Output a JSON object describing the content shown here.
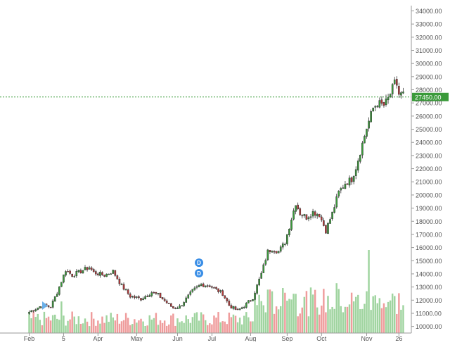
{
  "chart_data": {
    "type": "candlestick",
    "y_axis": {
      "position": "right",
      "min": 9500,
      "max": 34400,
      "ticks": [
        10000,
        11000,
        12000,
        13000,
        14000,
        15000,
        16000,
        17000,
        18000,
        19000,
        20000,
        21000,
        22000,
        23000,
        24000,
        25000,
        26000,
        27000,
        28000,
        29000,
        30000,
        31000,
        32000,
        33000,
        34000
      ],
      "tick_labels": [
        "10000.00",
        "11000.00",
        "12000.00",
        "13000.00",
        "14000.00",
        "15000.00",
        "16000.00",
        "17000.00",
        "18000.00",
        "19000.00",
        "20000.00",
        "21000.00",
        "22000.00",
        "23000.00",
        "24000.00",
        "25000.00",
        "26000.00",
        "27000.00",
        "28000.00",
        "29000.00",
        "30000.00",
        "31000.00",
        "32000.00",
        "33000.00",
        "34000.00"
      ]
    },
    "x_axis": {
      "bar_count": 175,
      "labels": [
        {
          "bar": 0,
          "text": "Feb"
        },
        {
          "bar": 16,
          "text": "5"
        },
        {
          "bar": 32,
          "text": "Apr"
        },
        {
          "bar": 50,
          "text": "May"
        },
        {
          "bar": 69,
          "text": "Jun"
        },
        {
          "bar": 85,
          "text": "Jul"
        },
        {
          "bar": 103,
          "text": "Aug"
        },
        {
          "bar": 120,
          "text": "Sep"
        },
        {
          "bar": 136,
          "text": "Oct"
        },
        {
          "bar": 157,
          "text": "Nov"
        },
        {
          "bar": 172,
          "text": "26"
        }
      ]
    },
    "current_price": {
      "value": 27450,
      "label": "27450.00",
      "color": "#3a9a3a"
    },
    "markers": [
      {
        "bar": 79,
        "price": 14850,
        "text": "D"
      },
      {
        "bar": 79,
        "price": 14050,
        "text": "D"
      }
    ],
    "pivots": [
      [
        0,
        11100
      ],
      [
        6,
        11600
      ],
      [
        10,
        11500
      ],
      [
        13,
        12600
      ],
      [
        17,
        14300
      ],
      [
        20,
        13900
      ],
      [
        24,
        14200
      ],
      [
        28,
        14500
      ],
      [
        30,
        14100
      ],
      [
        35,
        13900
      ],
      [
        39,
        14200
      ],
      [
        43,
        13100
      ],
      [
        47,
        12300
      ],
      [
        52,
        12100
      ],
      [
        57,
        12600
      ],
      [
        60,
        12400
      ],
      [
        64,
        11800
      ],
      [
        67,
        11400
      ],
      [
        70,
        11500
      ],
      [
        73,
        12100
      ],
      [
        76,
        12700
      ],
      [
        80,
        13200
      ],
      [
        84,
        13100
      ],
      [
        88,
        12700
      ],
      [
        90,
        12500
      ],
      [
        93,
        11600
      ],
      [
        97,
        11200
      ],
      [
        101,
        11700
      ],
      [
        104,
        12200
      ],
      [
        108,
        14000
      ],
      [
        111,
        15700
      ],
      [
        113,
        15900
      ],
      [
        116,
        15700
      ],
      [
        119,
        16400
      ],
      [
        121,
        17600
      ],
      [
        124,
        19400
      ],
      [
        126,
        18600
      ],
      [
        129,
        18300
      ],
      [
        132,
        18700
      ],
      [
        135,
        18500
      ],
      [
        138,
        17300
      ],
      [
        141,
        18600
      ],
      [
        144,
        20200
      ],
      [
        147,
        20900
      ],
      [
        150,
        21200
      ],
      [
        152,
        22100
      ],
      [
        154,
        23300
      ],
      [
        157,
        25100
      ],
      [
        160,
        26600
      ],
      [
        162,
        27000
      ],
      [
        165,
        26800
      ],
      [
        167,
        27300
      ],
      [
        170,
        28500
      ],
      [
        171,
        28400
      ],
      [
        172,
        27650
      ]
    ],
    "up_color": "#3a9a3a",
    "down_color": "#b93a3a",
    "volume": {
      "up_color": "#9fd49f",
      "down_color": "#ef9c9c",
      "max_relative": 1.0
    }
  }
}
